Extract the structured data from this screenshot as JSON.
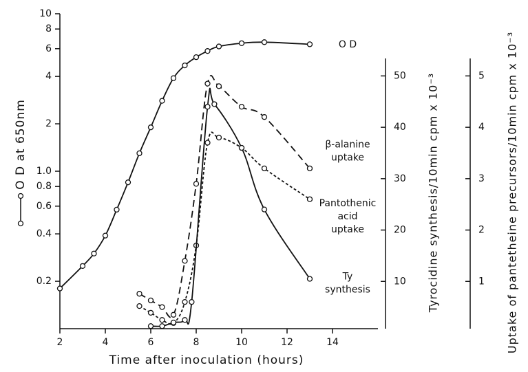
{
  "chart_data": {
    "type": "line",
    "xlabel": "Time after inoculation (hours)",
    "ylabel": "O D at 650nm",
    "y2label": "Tyrocidine synthesis/10min cpm x 10⁻³",
    "y3label": "Uptake of pantetheine precursors/10min cpm x 10⁻³",
    "xlim": [
      2,
      16
    ],
    "xticks": [
      2,
      4,
      6,
      8,
      10,
      12,
      14
    ],
    "ylim": [
      0.1,
      10
    ],
    "log_y": true,
    "yticks": [
      0.2,
      0.4,
      0.6,
      0.8,
      {
        "value": 1,
        "label": "1.0"
      },
      2,
      4,
      6,
      8,
      10
    ],
    "y2lim": [
      0.8,
      53.4
    ],
    "y2ticks": [
      10,
      20,
      30,
      40,
      50
    ],
    "y3lim": [
      0.08,
      5.34
    ],
    "y3ticks": [
      1,
      2,
      3,
      4,
      5
    ],
    "series": [
      {
        "name": "O D",
        "color": "#111111",
        "dash": "none",
        "axis": "y",
        "x": [
          2,
          3,
          3.5,
          4,
          4.5,
          5,
          5.5,
          6,
          6.5,
          7,
          7.5,
          8,
          8.5,
          9,
          10,
          11,
          13
        ],
        "values": [
          0.18,
          0.25,
          0.3,
          0.39,
          0.57,
          0.85,
          1.3,
          1.9,
          2.8,
          3.9,
          4.7,
          5.3,
          5.8,
          6.2,
          6.5,
          6.6,
          6.4
        ]
      },
      {
        "name": "β-alanine\nuptake",
        "color": "#111111",
        "dash": "10,6",
        "axis": "y3",
        "x": [
          5.5,
          6,
          6.5,
          7,
          7.5,
          8,
          8.5,
          9,
          10,
          11,
          13
        ],
        "values": [
          0.76,
          0.63,
          0.5,
          0.35,
          1.4,
          2.9,
          4.85,
          4.8,
          4.4,
          4.2,
          3.2
        ]
      },
      {
        "name": "Pantothenic\nacid\nuptake",
        "color": "#111111",
        "dash": "4,3",
        "axis": "y3",
        "x": [
          5.5,
          6,
          6.5,
          7,
          7.5,
          8,
          8.5,
          9,
          10,
          11,
          13
        ],
        "values": [
          0.52,
          0.39,
          0.25,
          0.19,
          0.6,
          1.7,
          3.7,
          3.8,
          3.6,
          3.2,
          2.6
        ]
      },
      {
        "name": "Ty\nsynthesis",
        "color": "#111111",
        "dash": "none",
        "axis": "y2",
        "x": [
          6,
          6.5,
          7,
          7.5,
          7.8,
          8.5,
          8.8,
          10,
          11,
          13
        ],
        "values": [
          1.3,
          1.3,
          2,
          2.5,
          6,
          44,
          44.5,
          36,
          24,
          10.5
        ]
      }
    ]
  }
}
